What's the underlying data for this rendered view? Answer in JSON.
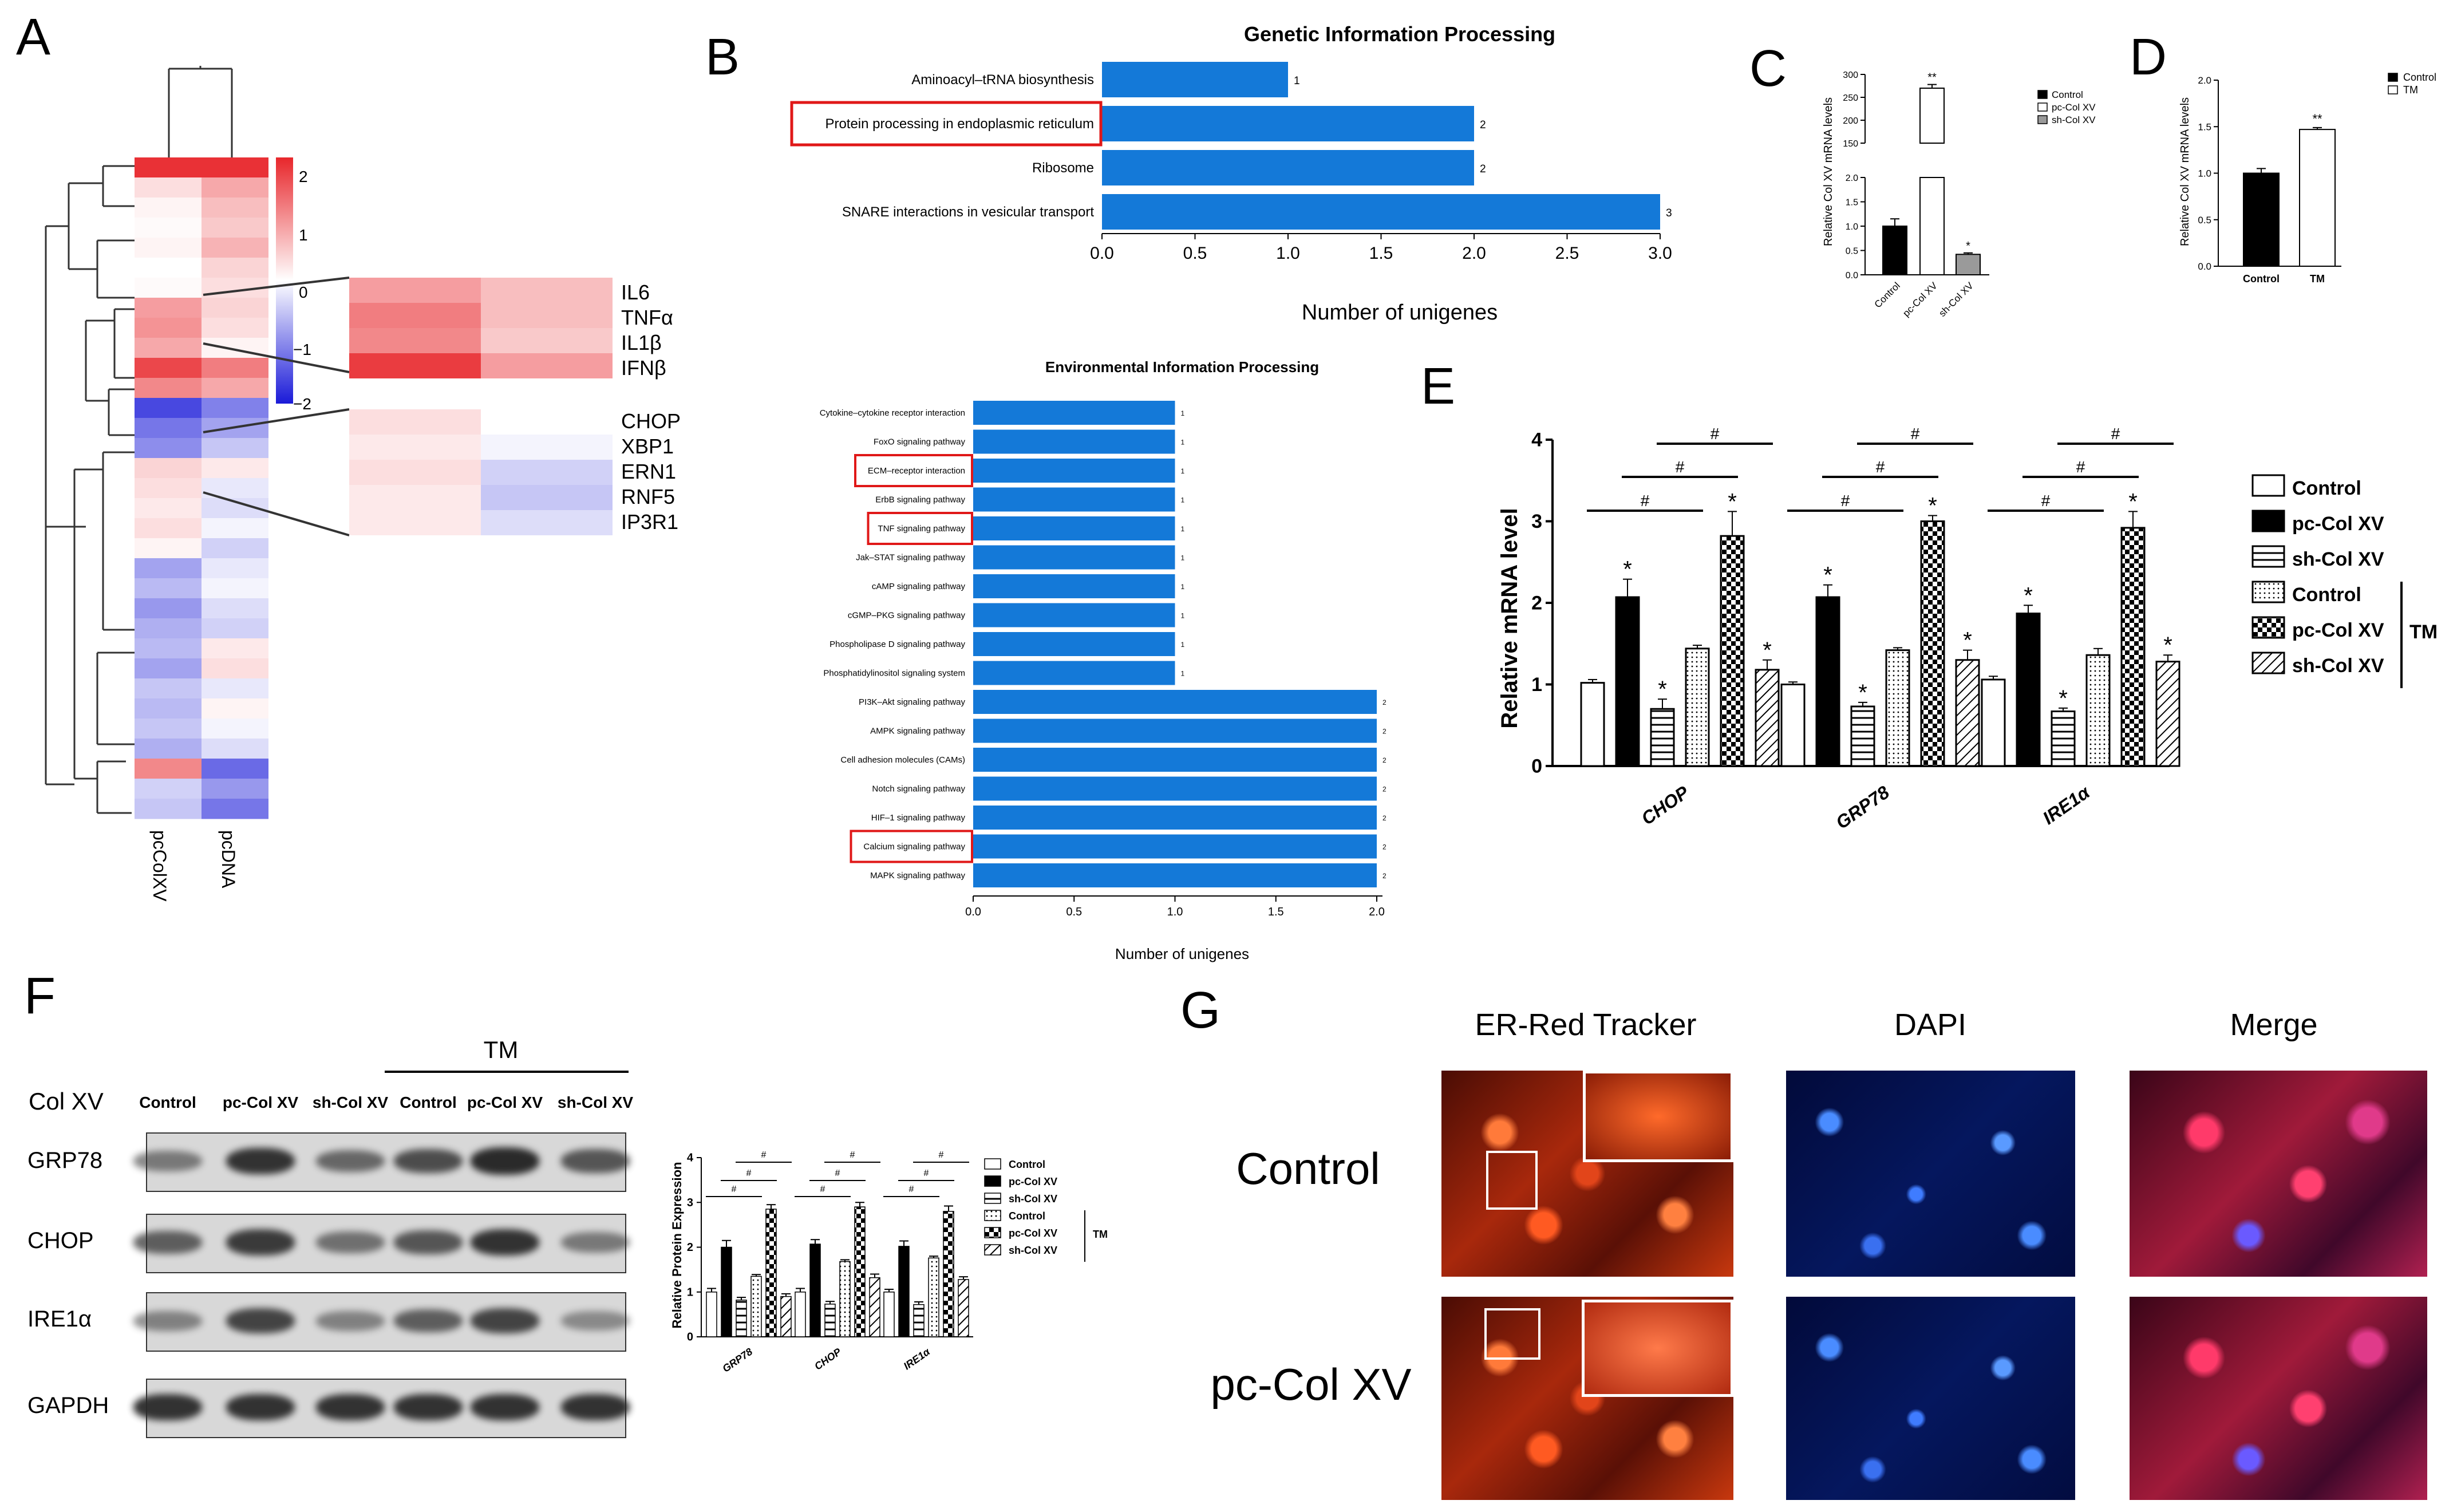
{
  "panel_labels": [
    "A",
    "B",
    "C",
    "D",
    "E",
    "F",
    "G"
  ],
  "heatmap": {
    "columns": [
      "pcColXV",
      "pcDNA"
    ],
    "colorbar_ticks": [
      "2",
      "1",
      "0",
      "−1",
      "−2"
    ],
    "zoom1_genes": [
      "IL6",
      "TNFα",
      "IL1β",
      "IFNβ"
    ],
    "zoom2_genes": [
      "CHOP",
      "XBP1",
      "ERN1",
      "RNF5",
      "IP3R1"
    ],
    "colors": {
      "high": "#e8262b",
      "low": "#1a1ad8",
      "mid": "#ffffff"
    }
  },
  "chart_data": [
    {
      "id": "B-top",
      "type": "bar",
      "orientation": "horizontal",
      "title": "Genetic Information Processing",
      "categories": [
        "Aminoacyl–tRNA biosynthesis",
        "Protein processing in endoplasmic reticulum",
        "Ribosome",
        "SNARE interactions in vesicular transport"
      ],
      "values": [
        1,
        2,
        2,
        3
      ],
      "value_labels": [
        "1",
        "2",
        "2",
        "3"
      ],
      "highlighted": [
        "Protein processing in endoplasmic reticulum"
      ],
      "xlabel": "Number of unigenes",
      "xlim": [
        0,
        3
      ],
      "xticks": [
        "0.0",
        "0.5",
        "1.0",
        "1.5",
        "2.0",
        "2.5",
        "3.0"
      ],
      "color": "#1479d8"
    },
    {
      "id": "B-bottom",
      "type": "bar",
      "orientation": "horizontal",
      "title": "Environmental Information Processing",
      "categories": [
        "Cytokine–cytokine receptor interaction",
        "FoxO signaling pathway",
        "ECM–receptor interaction",
        "ErbB signaling pathway",
        "TNF signaling pathway",
        "Jak–STAT signaling pathway",
        "cAMP signaling pathway",
        "cGMP–PKG signaling pathway",
        "Phospholipase D signaling pathway",
        "Phosphatidylinositol signaling system",
        "PI3K–Akt signaling pathway",
        "AMPK signaling pathway",
        "Cell adhesion molecules (CAMs)",
        "Notch signaling pathway",
        "HIF–1 signaling pathway",
        "Calcium signaling pathway",
        "MAPK signaling pathway"
      ],
      "values": [
        1,
        1,
        1,
        1,
        1,
        1,
        1,
        1,
        1,
        1,
        2,
        2,
        2,
        2,
        2,
        2,
        2
      ],
      "value_labels": [
        "1",
        "1",
        "1",
        "1",
        "1",
        "1",
        "1",
        "1",
        "1",
        "1",
        "2",
        "2",
        "2",
        "2",
        "2",
        "2",
        "2"
      ],
      "highlighted": [
        "ECM–receptor interaction",
        "TNF signaling pathway",
        "Calcium signaling pathway"
      ],
      "xlabel": "Number of unigenes",
      "xlim": [
        0,
        2
      ],
      "xticks": [
        "0.0",
        "0.5",
        "1.0",
        "1.5",
        "2.0"
      ],
      "color": "#1479d8"
    },
    {
      "id": "C",
      "type": "bar",
      "categories": [
        "Control",
        "pc-Col XV",
        "sh-Col XV"
      ],
      "values": [
        1.0,
        270,
        0.42
      ],
      "errors": [
        0.15,
        8,
        0.03
      ],
      "significance": [
        "",
        "**",
        "*"
      ],
      "ylabel": "Relative Col XV mRNA levels",
      "y_break": {
        "lower": [
          0,
          2.0
        ],
        "upper": [
          150,
          300
        ]
      },
      "lower_ticks": [
        "0.0",
        "0.5",
        "1.0",
        "1.5",
        "2.0"
      ],
      "upper_ticks": [
        "150",
        "200",
        "250",
        "300"
      ],
      "legend": [
        "Control",
        "pc-Col XV",
        "sh-Col XV"
      ],
      "fills": [
        "#000000",
        "#ffffff",
        "#9a9a9a"
      ]
    },
    {
      "id": "D",
      "type": "bar",
      "categories": [
        "Control",
        "TM"
      ],
      "values": [
        1.0,
        1.47
      ],
      "errors": [
        0.05,
        0.02
      ],
      "significance": [
        "",
        "**"
      ],
      "ylabel": "Relative Col XV mRNA levels",
      "ylim": [
        0,
        2.0
      ],
      "yticks": [
        "0.0",
        "0.5",
        "1.0",
        "1.5",
        "2.0"
      ],
      "legend": [
        "Control",
        "TM"
      ],
      "fills": [
        "#000000",
        "#ffffff"
      ]
    },
    {
      "id": "E",
      "type": "bar",
      "categories": [
        "CHOP",
        "GRP78",
        "IRE1α"
      ],
      "series": [
        {
          "name": "Control",
          "values": [
            1.02,
            1.0,
            1.06
          ],
          "errors": [
            0.04,
            0.03,
            0.04
          ],
          "sig": [
            "",
            "",
            ""
          ]
        },
        {
          "name": "pc-Col XV",
          "values": [
            2.07,
            2.07,
            1.87
          ],
          "errors": [
            0.22,
            0.15,
            0.1
          ],
          "sig": [
            "*",
            "*",
            "*"
          ]
        },
        {
          "name": "sh-Col XV",
          "values": [
            0.7,
            0.73,
            0.67
          ],
          "errors": [
            0.12,
            0.05,
            0.04
          ],
          "sig": [
            "*",
            "*",
            "*"
          ]
        },
        {
          "name": "Control",
          "values": [
            1.44,
            1.42,
            1.36
          ],
          "errors": [
            0.04,
            0.03,
            0.08
          ],
          "sig": [
            "",
            "",
            ""
          ]
        },
        {
          "name": "pc-Col XV",
          "values": [
            2.82,
            3.0,
            2.92
          ],
          "errors": [
            0.3,
            0.07,
            0.2
          ],
          "sig": [
            "*",
            "*",
            "*"
          ]
        },
        {
          "name": "sh-Col XV",
          "values": [
            1.18,
            1.3,
            1.28
          ],
          "errors": [
            0.12,
            0.12,
            0.08
          ],
          "sig": [
            "*",
            "*",
            "*"
          ]
        }
      ],
      "ylabel": "Relative mRNA level",
      "ylim": [
        0,
        4
      ],
      "yticks": [
        "0",
        "1",
        "2",
        "3",
        "4"
      ],
      "group_label": "TM",
      "comparison_mark": "#"
    },
    {
      "id": "F-quant",
      "type": "bar",
      "categories": [
        "GRP78",
        "CHOP",
        "IRE1α"
      ],
      "series": [
        {
          "name": "Control",
          "values": [
            1.0,
            1.0,
            1.0
          ],
          "errors": [
            0.08,
            0.08,
            0.06
          ]
        },
        {
          "name": "pc-Col XV",
          "values": [
            2.0,
            2.07,
            2.02
          ],
          "errors": [
            0.15,
            0.1,
            0.12
          ]
        },
        {
          "name": "sh-Col XV",
          "values": [
            0.82,
            0.73,
            0.72
          ],
          "errors": [
            0.06,
            0.06,
            0.06
          ]
        },
        {
          "name": "Control",
          "values": [
            1.35,
            1.68,
            1.76
          ],
          "errors": [
            0.04,
            0.04,
            0.04
          ]
        },
        {
          "name": "pc-Col XV",
          "values": [
            2.85,
            2.9,
            2.8
          ],
          "errors": [
            0.1,
            0.1,
            0.12
          ]
        },
        {
          "name": "sh-Col XV",
          "values": [
            0.9,
            1.32,
            1.28
          ],
          "errors": [
            0.06,
            0.08,
            0.06
          ]
        }
      ],
      "ylabel": "Relative Protein Expression",
      "ylim": [
        0,
        4
      ],
      "yticks": [
        "0",
        "1",
        "2",
        "3",
        "4"
      ],
      "group_label": "TM"
    }
  ],
  "western": {
    "tm_label": "TM",
    "col_label": "Col XV",
    "lanes": [
      "Control",
      "pc-Col XV",
      "sh-Col XV",
      "Control",
      "pc-Col XV",
      "sh-Col XV"
    ],
    "proteins": [
      "GRP78",
      "CHOP",
      "IRE1α",
      "GAPDH"
    ]
  },
  "imaging": {
    "columns": [
      "ER-Red Tracker",
      "DAPI",
      "Merge"
    ],
    "rows": [
      "Control",
      "pc-Col XV"
    ]
  }
}
